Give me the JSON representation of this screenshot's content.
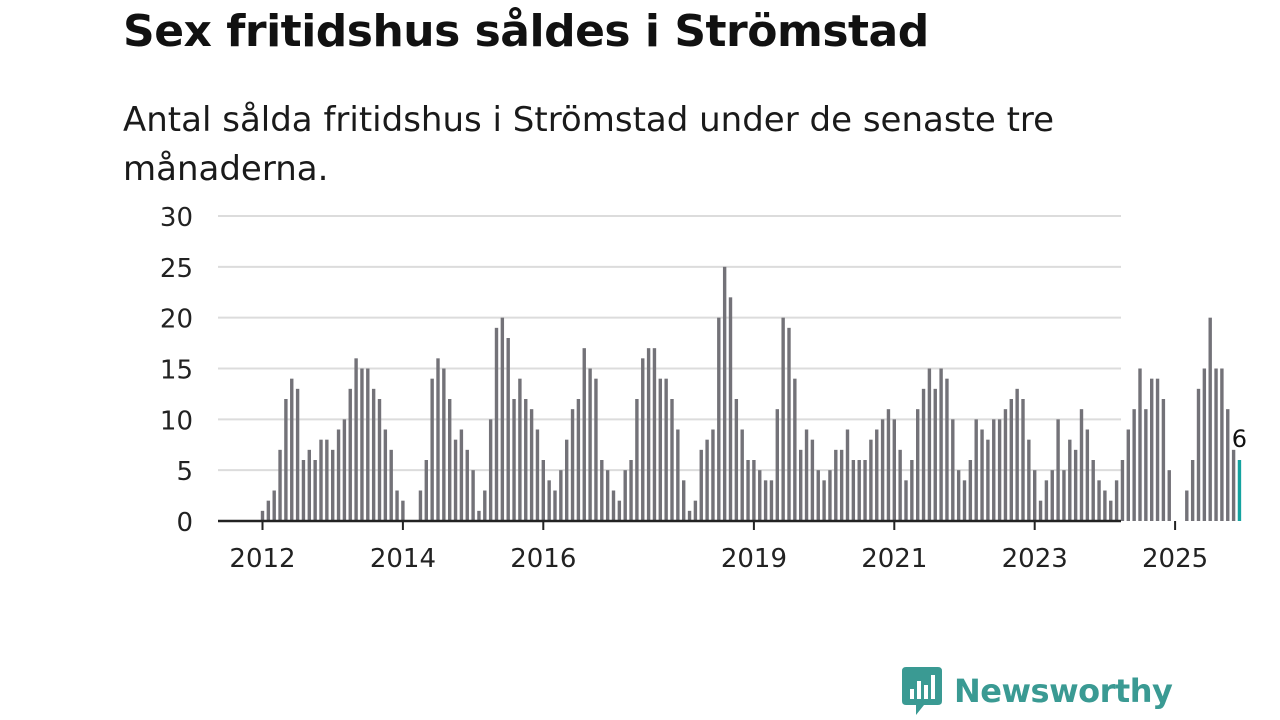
{
  "title": "Sex fritidshus såldes i Strömstad",
  "subtitle": "Antal sålda fritidshus i Strömstad under de senaste tre månaderna.",
  "brand": {
    "name": "Newsworthy",
    "color": "#3a9a93",
    "icon": "newsworthy-logo-icon"
  },
  "colors": {
    "bar": "#737278",
    "highlight": "#14a3a0",
    "grid": "#dcdcdc",
    "axis": "#222222"
  },
  "chart_data": {
    "type": "bar",
    "title": "Sex fritidshus såldes i Strömstad",
    "xlabel": "",
    "ylabel": "",
    "ylim": [
      0,
      30
    ],
    "yticks": [
      0,
      5,
      10,
      15,
      20,
      25,
      30
    ],
    "xticks": [
      {
        "label": "2012",
        "index": 0
      },
      {
        "label": "2014",
        "index": 24
      },
      {
        "label": "2016",
        "index": 48
      },
      {
        "label": "2019",
        "index": 84
      },
      {
        "label": "2021",
        "index": 108
      },
      {
        "label": "2023",
        "index": 132
      },
      {
        "label": "2025",
        "index": 156
      }
    ],
    "start": "2012-01",
    "end": "2025-12",
    "values": [
      1,
      2,
      3,
      7,
      12,
      14,
      13,
      6,
      7,
      6,
      8,
      8,
      7,
      9,
      10,
      13,
      16,
      15,
      15,
      13,
      12,
      9,
      7,
      3,
      2,
      0,
      0,
      3,
      6,
      14,
      16,
      15,
      12,
      8,
      9,
      7,
      5,
      1,
      3,
      10,
      19,
      20,
      18,
      12,
      14,
      12,
      11,
      9,
      6,
      4,
      3,
      5,
      8,
      11,
      12,
      17,
      15,
      14,
      6,
      5,
      3,
      2,
      5,
      6,
      12,
      16,
      17,
      17,
      14,
      14,
      12,
      9,
      4,
      1,
      2,
      7,
      8,
      9,
      20,
      25,
      22,
      12,
      9,
      6,
      6,
      5,
      4,
      4,
      11,
      20,
      19,
      14,
      7,
      9,
      8,
      5,
      4,
      5,
      7,
      7,
      9,
      6,
      6,
      6,
      8,
      9,
      10,
      11,
      10,
      7,
      4,
      6,
      11,
      13,
      15,
      13,
      15,
      14,
      10,
      5,
      4,
      6,
      10,
      9,
      8,
      10,
      10,
      11,
      12,
      13,
      12,
      8,
      5,
      2,
      4,
      5,
      10,
      5,
      8,
      7,
      11,
      9,
      6,
      4,
      3,
      2,
      4,
      6,
      9,
      11,
      15,
      11,
      14,
      14,
      12,
      5,
      0,
      0,
      3,
      6,
      13,
      15,
      20,
      15,
      15,
      11,
      7,
      6
    ],
    "highlight_index": 167,
    "highlight_label": "6"
  }
}
